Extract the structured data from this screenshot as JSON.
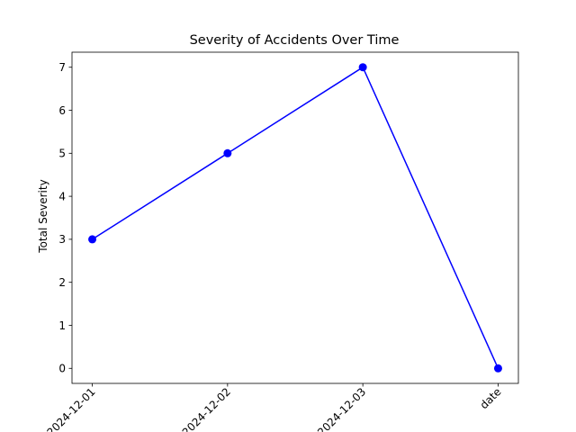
{
  "chart_data": {
    "type": "line",
    "title": "Severity of Accidents Over Time",
    "xlabel": "",
    "ylabel": "Total Severity",
    "categories": [
      "2024-12-01",
      "2024-12-02",
      "2024-12-03",
      "date"
    ],
    "series": [
      {
        "values": [
          3,
          5,
          7,
          0
        ],
        "color": "#0000ff",
        "marker": "circle"
      }
    ],
    "ylim": [
      -0.35,
      7.35
    ],
    "yticks": [
      0,
      1,
      2,
      3,
      4,
      5,
      6,
      7
    ],
    "xtick_rotation": 45,
    "grid": false,
    "legend": false
  }
}
